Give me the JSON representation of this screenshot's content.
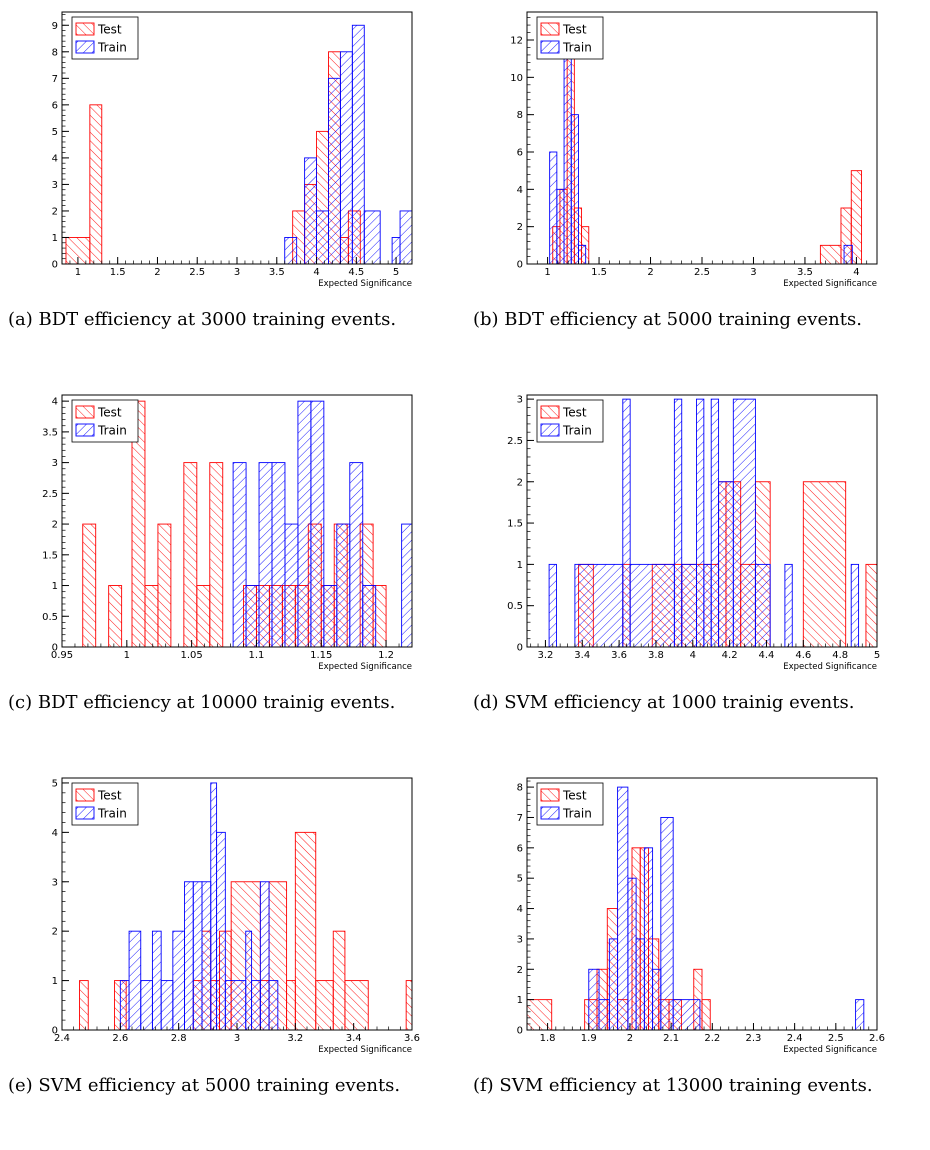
{
  "colors": {
    "test": "#ff0000",
    "train": "#0000ff",
    "frame": "#000000"
  },
  "chart_data": [
    {
      "id": "a",
      "type": "bar",
      "caption": "(a) BDT efficiency at 3000 training events.",
      "xlabel": "Expected Significance",
      "ylabel": "",
      "xlim": [
        0.8,
        5.2
      ],
      "ylim": [
        0,
        9.5
      ],
      "x_ticks": [
        1,
        1.5,
        2,
        2.5,
        3,
        3.5,
        4,
        4.5,
        5
      ],
      "x_ticklabels": [
        "1",
        "1.5",
        "2",
        "2.5",
        "3",
        "3.5",
        "4",
        "4.5",
        "5"
      ],
      "y_ticks": [
        0,
        1,
        2,
        3,
        4,
        5,
        6,
        7,
        8,
        9
      ],
      "y_ticklabels": [
        "0",
        "1",
        "2",
        "3",
        "4",
        "5",
        "6",
        "7",
        "8",
        "9"
      ],
      "legend": {
        "position": "top-left",
        "entries": [
          "Test",
          "Train"
        ]
      },
      "series": [
        {
          "name": "Test",
          "bins": [
            [
              0.85,
              1.15,
              1
            ],
            [
              1.15,
              1.3,
              6
            ],
            [
              3.7,
              3.85,
              2
            ],
            [
              3.85,
              4.0,
              3
            ],
            [
              4.0,
              4.15,
              5
            ],
            [
              4.15,
              4.3,
              8
            ],
            [
              4.3,
              4.4,
              1
            ],
            [
              4.4,
              4.55,
              2
            ]
          ]
        },
        {
          "name": "Train",
          "bins": [
            [
              3.6,
              3.75,
              1
            ],
            [
              3.85,
              4.0,
              4
            ],
            [
              4.0,
              4.15,
              2
            ],
            [
              4.15,
              4.3,
              7
            ],
            [
              4.3,
              4.45,
              8
            ],
            [
              4.45,
              4.6,
              9
            ],
            [
              4.6,
              4.8,
              2
            ],
            [
              4.95,
              5.05,
              1
            ],
            [
              5.05,
              5.2,
              2
            ]
          ]
        }
      ]
    },
    {
      "id": "b",
      "type": "bar",
      "caption": "(b) BDT efficiency at 5000 training events.",
      "xlabel": "Expected Significance",
      "ylabel": "",
      "xlim": [
        0.8,
        4.2
      ],
      "ylim": [
        0,
        13.5
      ],
      "x_ticks": [
        1,
        1.5,
        2,
        2.5,
        3,
        3.5,
        4
      ],
      "x_ticklabels": [
        "1",
        "1.5",
        "2",
        "2.5",
        "3",
        "3.5",
        "4"
      ],
      "y_ticks": [
        0,
        2,
        4,
        6,
        8,
        10,
        12
      ],
      "y_ticklabels": [
        "0",
        "2",
        "4",
        "6",
        "8",
        "10",
        "12"
      ],
      "legend": {
        "position": "top-left",
        "entries": [
          "Test",
          "Train"
        ]
      },
      "series": [
        {
          "name": "Test",
          "bins": [
            [
              1.05,
              1.12,
              2
            ],
            [
              1.12,
              1.19,
              4
            ],
            [
              1.19,
              1.26,
              12
            ],
            [
              1.26,
              1.33,
              3
            ],
            [
              1.33,
              1.4,
              2
            ],
            [
              3.65,
              3.85,
              1
            ],
            [
              3.85,
              3.95,
              3
            ],
            [
              3.95,
              4.05,
              5
            ]
          ]
        },
        {
          "name": "Train",
          "bins": [
            [
              1.02,
              1.09,
              6
            ],
            [
              1.09,
              1.16,
              4
            ],
            [
              1.16,
              1.23,
              11
            ],
            [
              1.23,
              1.3,
              8
            ],
            [
              1.3,
              1.37,
              1
            ],
            [
              3.88,
              3.96,
              1
            ]
          ]
        }
      ]
    },
    {
      "id": "c",
      "type": "bar",
      "caption": "(c) BDT efficiency at 10000 trainig events.",
      "xlabel": "Expected Significance",
      "ylabel": "",
      "xlim": [
        0.95,
        1.22
      ],
      "ylim": [
        0,
        4.1
      ],
      "x_ticks": [
        0.95,
        1,
        1.05,
        1.1,
        1.15,
        1.2
      ],
      "x_ticklabels": [
        "0.95",
        "1",
        "1.05",
        "1.1",
        "1.15",
        "1.2"
      ],
      "y_ticks": [
        0,
        0.5,
        1,
        1.5,
        2,
        2.5,
        3,
        3.5,
        4
      ],
      "y_ticklabels": [
        "0",
        "0.5",
        "1",
        "1.5",
        "2",
        "2.5",
        "3",
        "3.5",
        "4"
      ],
      "legend": {
        "position": "top-left",
        "entries": [
          "Test",
          "Train"
        ]
      },
      "series": [
        {
          "name": "Test",
          "bins": [
            [
              0.966,
              0.976,
              2
            ],
            [
              0.986,
              0.996,
              1
            ],
            [
              1.004,
              1.014,
              4
            ],
            [
              1.014,
              1.024,
              1
            ],
            [
              1.024,
              1.034,
              2
            ],
            [
              1.044,
              1.054,
              3
            ],
            [
              1.054,
              1.064,
              1
            ],
            [
              1.064,
              1.074,
              3
            ],
            [
              1.09,
              1.1,
              1
            ],
            [
              1.1,
              1.11,
              1
            ],
            [
              1.11,
              1.12,
              1
            ],
            [
              1.12,
              1.13,
              1
            ],
            [
              1.13,
              1.14,
              1
            ],
            [
              1.14,
              1.15,
              2
            ],
            [
              1.15,
              1.16,
              1
            ],
            [
              1.16,
              1.17,
              2
            ],
            [
              1.18,
              1.19,
              2
            ],
            [
              1.19,
              1.2,
              1
            ]
          ]
        },
        {
          "name": "Train",
          "bins": [
            [
              1.082,
              1.092,
              3
            ],
            [
              1.092,
              1.102,
              1
            ],
            [
              1.102,
              1.112,
              3
            ],
            [
              1.112,
              1.122,
              3
            ],
            [
              1.122,
              1.132,
              2
            ],
            [
              1.132,
              1.142,
              4
            ],
            [
              1.142,
              1.152,
              4
            ],
            [
              1.152,
              1.162,
              1
            ],
            [
              1.162,
              1.172,
              2
            ],
            [
              1.172,
              1.182,
              3
            ],
            [
              1.182,
              1.192,
              1
            ],
            [
              1.212,
              1.222,
              2
            ]
          ]
        }
      ]
    },
    {
      "id": "d",
      "type": "bar",
      "caption": "(d) SVM efficiency at 1000 trainig events.",
      "xlabel": "Expected Significance",
      "ylabel": "",
      "xlim": [
        3.1,
        5.0
      ],
      "ylim": [
        0,
        3.05
      ],
      "x_ticks": [
        3.2,
        3.4,
        3.6,
        3.8,
        4,
        4.2,
        4.4,
        4.6,
        4.8,
        5
      ],
      "x_ticklabels": [
        "3.2",
        "3.4",
        "3.6",
        "3.8",
        "4",
        "4.2",
        "4.4",
        "4.6",
        "4.8",
        "5"
      ],
      "y_ticks": [
        0,
        0.5,
        1,
        1.5,
        2,
        2.5,
        3
      ],
      "y_ticklabels": [
        "0",
        "0.5",
        "1",
        "1.5",
        "2",
        "2.5",
        "3"
      ],
      "legend": {
        "position": "top-left",
        "entries": [
          "Test",
          "Train"
        ]
      },
      "series": [
        {
          "name": "Test",
          "bins": [
            [
              3.38,
              3.46,
              1
            ],
            [
              3.62,
              3.66,
              1
            ],
            [
              3.78,
              3.94,
              1
            ],
            [
              3.94,
              4.02,
              1
            ],
            [
              4.02,
              4.14,
              1
            ],
            [
              4.14,
              4.18,
              2
            ],
            [
              4.18,
              4.26,
              2
            ],
            [
              4.26,
              4.34,
              1
            ],
            [
              4.34,
              4.42,
              2
            ],
            [
              4.6,
              4.83,
              2
            ],
            [
              4.94,
              5.0,
              1
            ]
          ]
        },
        {
          "name": "Train",
          "bins": [
            [
              3.22,
              3.26,
              1
            ],
            [
              3.36,
              3.62,
              1
            ],
            [
              3.62,
              3.66,
              3
            ],
            [
              3.66,
              3.9,
              1
            ],
            [
              3.9,
              3.94,
              3
            ],
            [
              3.94,
              4.02,
              1
            ],
            [
              4.02,
              4.06,
              3
            ],
            [
              4.06,
              4.1,
              1
            ],
            [
              4.1,
              4.14,
              3
            ],
            [
              4.14,
              4.22,
              2
            ],
            [
              4.22,
              4.34,
              3
            ],
            [
              4.34,
              4.42,
              1
            ],
            [
              4.5,
              4.54,
              1
            ],
            [
              4.86,
              4.9,
              1
            ]
          ]
        }
      ]
    },
    {
      "id": "e",
      "type": "bar",
      "caption": "(e) SVM efficiency at 5000 training events.",
      "xlabel": "Expected Significance",
      "ylabel": "",
      "xlim": [
        2.4,
        3.6
      ],
      "ylim": [
        0,
        5.1
      ],
      "x_ticks": [
        2.4,
        2.6,
        2.8,
        3,
        3.2,
        3.4,
        3.6
      ],
      "x_ticklabels": [
        "2.4",
        "2.6",
        "2.8",
        "3",
        "3.2",
        "3.4",
        "3.6"
      ],
      "y_ticks": [
        0,
        1,
        2,
        3,
        4,
        5
      ],
      "y_ticklabels": [
        "0",
        "1",
        "2",
        "3",
        "4",
        "5"
      ],
      "legend": {
        "position": "top-left",
        "entries": [
          "Test",
          "Train"
        ]
      },
      "series": [
        {
          "name": "Test",
          "bins": [
            [
              2.46,
              2.49,
              1
            ],
            [
              2.58,
              2.62,
              1
            ],
            [
              2.85,
              2.88,
              1
            ],
            [
              2.88,
              2.91,
              2
            ],
            [
              2.91,
              2.94,
              1
            ],
            [
              2.94,
              2.98,
              2
            ],
            [
              2.98,
              3.08,
              3
            ],
            [
              3.08,
              3.11,
              1
            ],
            [
              3.11,
              3.17,
              3
            ],
            [
              3.17,
              3.2,
              1
            ],
            [
              3.2,
              3.27,
              4
            ],
            [
              3.27,
              3.33,
              1
            ],
            [
              3.33,
              3.37,
              2
            ],
            [
              3.37,
              3.45,
              1
            ],
            [
              3.58,
              3.6,
              1
            ]
          ]
        },
        {
          "name": "Train",
          "bins": [
            [
              2.6,
              2.63,
              1
            ],
            [
              2.63,
              2.67,
              2
            ],
            [
              2.67,
              2.71,
              1
            ],
            [
              2.71,
              2.74,
              2
            ],
            [
              2.74,
              2.78,
              1
            ],
            [
              2.78,
              2.82,
              2
            ],
            [
              2.82,
              2.85,
              3
            ],
            [
              2.85,
              2.88,
              3
            ],
            [
              2.88,
              2.91,
              3
            ],
            [
              2.91,
              2.93,
              5
            ],
            [
              2.93,
              2.96,
              4
            ],
            [
              2.96,
              3.03,
              1
            ],
            [
              3.03,
              3.05,
              2
            ],
            [
              3.05,
              3.08,
              1
            ],
            [
              3.08,
              3.11,
              3
            ],
            [
              3.11,
              3.14,
              1
            ]
          ]
        }
      ]
    },
    {
      "id": "f",
      "type": "bar",
      "caption": "(f) SVM efficiency at 13000 training events.",
      "xlabel": "Expected Significance",
      "ylabel": "",
      "xlim": [
        1.75,
        2.6
      ],
      "ylim": [
        0,
        8.3
      ],
      "x_ticks": [
        1.8,
        1.9,
        2,
        2.1,
        2.2,
        2.3,
        2.4,
        2.5,
        2.6
      ],
      "x_ticklabels": [
        "1.8",
        "1.9",
        "2",
        "2.1",
        "2.2",
        "2.3",
        "2.4",
        "2.5",
        "2.6"
      ],
      "y_ticks": [
        0,
        1,
        2,
        3,
        4,
        5,
        6,
        7,
        8
      ],
      "y_ticklabels": [
        "0",
        "1",
        "2",
        "3",
        "4",
        "5",
        "6",
        "7",
        "8"
      ],
      "legend": {
        "position": "top-left",
        "entries": [
          "Test",
          "Train"
        ]
      },
      "series": [
        {
          "name": "Test",
          "bins": [
            [
              1.75,
              1.81,
              1
            ],
            [
              1.89,
              1.92,
              1
            ],
            [
              1.92,
              1.945,
              2
            ],
            [
              1.945,
              1.97,
              4
            ],
            [
              1.97,
              1.995,
              1
            ],
            [
              2.005,
              2.025,
              6
            ],
            [
              2.025,
              2.045,
              6
            ],
            [
              2.045,
              2.07,
              3
            ],
            [
              2.07,
              2.095,
              1
            ],
            [
              2.095,
              2.125,
              1
            ],
            [
              2.155,
              2.175,
              2
            ],
            [
              2.175,
              2.195,
              1
            ]
          ]
        },
        {
          "name": "Train",
          "bins": [
            [
              1.9,
              1.925,
              2
            ],
            [
              1.925,
              1.95,
              1
            ],
            [
              1.95,
              1.97,
              3
            ],
            [
              1.97,
              1.995,
              8
            ],
            [
              1.995,
              2.015,
              5
            ],
            [
              2.015,
              2.035,
              3
            ],
            [
              2.035,
              2.055,
              6
            ],
            [
              2.055,
              2.075,
              2
            ],
            [
              2.075,
              2.105,
              7
            ],
            [
              2.105,
              2.17,
              1
            ],
            [
              2.548,
              2.568,
              1
            ]
          ]
        }
      ]
    }
  ]
}
